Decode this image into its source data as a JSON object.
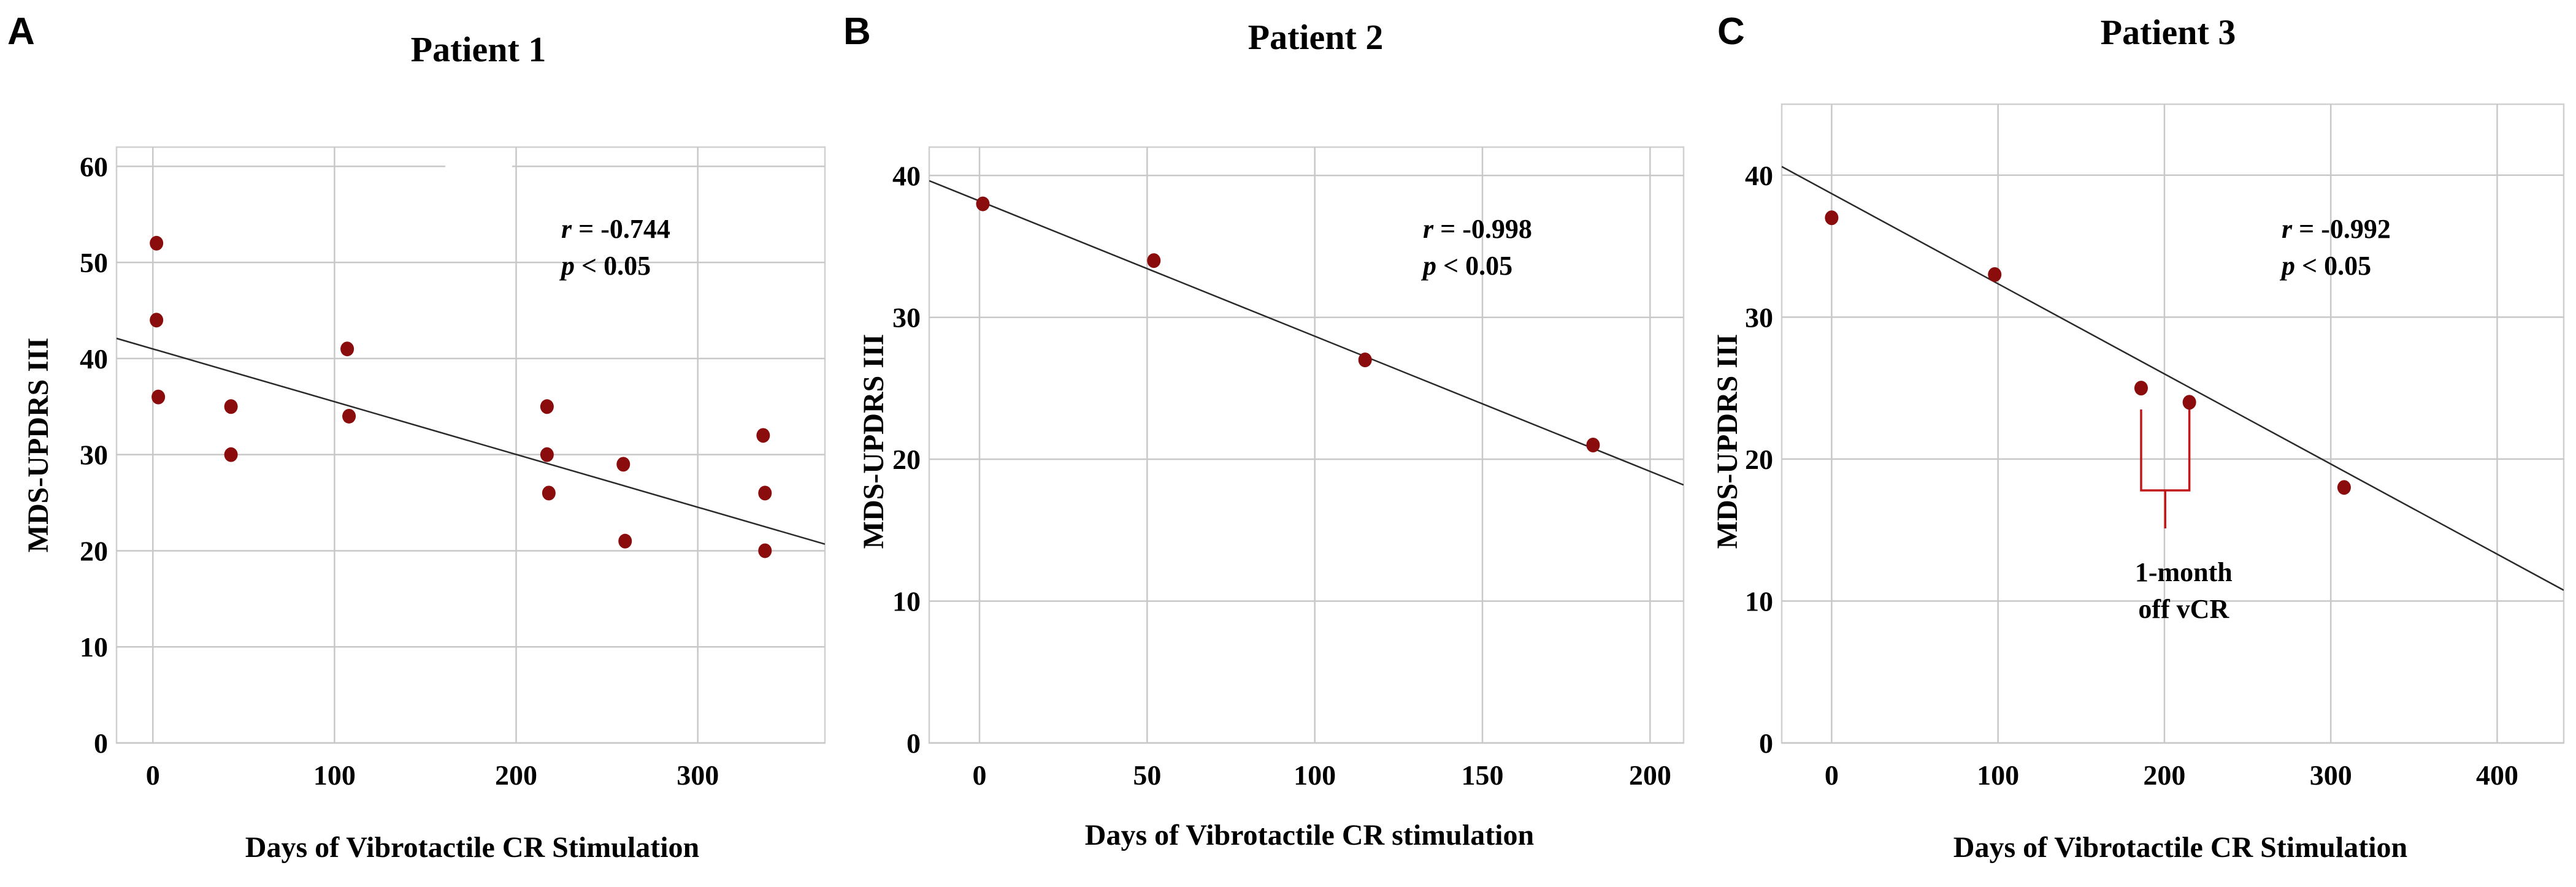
{
  "chart_data": [
    {
      "type": "scatter",
      "panel_letter": "A",
      "title": "Patient 1",
      "xlabel": "Days of Vibrotactile CR Stimulation",
      "ylabel": "MDS-UPDRS III",
      "xlim": [
        -20,
        370
      ],
      "ylim": [
        0,
        62
      ],
      "xticks": [
        0,
        100,
        200,
        300
      ],
      "yticks": [
        0,
        10,
        20,
        30,
        40,
        50,
        60
      ],
      "grid": true,
      "points": [
        {
          "x": 2,
          "y": 52
        },
        {
          "x": 2,
          "y": 44
        },
        {
          "x": 3,
          "y": 36
        },
        {
          "x": 43,
          "y": 35
        },
        {
          "x": 43,
          "y": 30
        },
        {
          "x": 107,
          "y": 41
        },
        {
          "x": 108,
          "y": 34
        },
        {
          "x": 217,
          "y": 35
        },
        {
          "x": 217,
          "y": 30
        },
        {
          "x": 218,
          "y": 26
        },
        {
          "x": 259,
          "y": 29
        },
        {
          "x": 260,
          "y": 21
        },
        {
          "x": 336,
          "y": 32
        },
        {
          "x": 337,
          "y": 26
        },
        {
          "x": 337,
          "y": 20
        }
      ],
      "regression": {
        "slope": -0.0549,
        "intercept": 41.0
      },
      "stats": {
        "r_symbol": "r",
        "r_value": "= -0.744",
        "p_symbol": "p",
        "p_value": "< 0.05"
      }
    },
    {
      "type": "scatter",
      "panel_letter": "B",
      "title": "Patient 2",
      "xlabel": "Days of Vibrotactile CR stimulation",
      "ylabel": "MDS-UPDRS III",
      "xlim": [
        -15,
        210
      ],
      "ylim": [
        0,
        42
      ],
      "xticks": [
        0,
        50,
        100,
        150,
        200
      ],
      "yticks": [
        0,
        10,
        20,
        30,
        40
      ],
      "grid": true,
      "points": [
        {
          "x": 1,
          "y": 38
        },
        {
          "x": 52,
          "y": 34
        },
        {
          "x": 115,
          "y": 27
        },
        {
          "x": 183,
          "y": 21
        }
      ],
      "regression": {
        "slope": -0.0953,
        "intercept": 38.2
      },
      "stats": {
        "r_symbol": "r",
        "r_value": "= -0.998",
        "p_symbol": "p",
        "p_value": "< 0.05"
      }
    },
    {
      "type": "scatter",
      "panel_letter": "C",
      "title": "Patient 3",
      "xlabel": "Days of Vibrotactile CR Stimulation",
      "ylabel": "MDS-UPDRS III",
      "xlim": [
        -30,
        440
      ],
      "ylim": [
        0,
        45
      ],
      "xticks": [
        0,
        100,
        200,
        300,
        400
      ],
      "yticks": [
        0,
        10,
        20,
        30,
        40
      ],
      "grid": true,
      "points": [
        {
          "x": 0,
          "y": 37
        },
        {
          "x": 98,
          "y": 33
        },
        {
          "x": 186,
          "y": 25
        },
        {
          "x": 215,
          "y": 24
        },
        {
          "x": 308,
          "y": 18
        }
      ],
      "regression": {
        "slope": -0.0635,
        "intercept": 38.7
      },
      "stats": {
        "r_symbol": "r",
        "r_value": "= -0.992",
        "p_symbol": "p",
        "p_value": "< 0.05"
      },
      "annotation": {
        "lines": [
          "1-month",
          "off vCR"
        ],
        "bracket_x": [
          186,
          215
        ]
      }
    }
  ]
}
